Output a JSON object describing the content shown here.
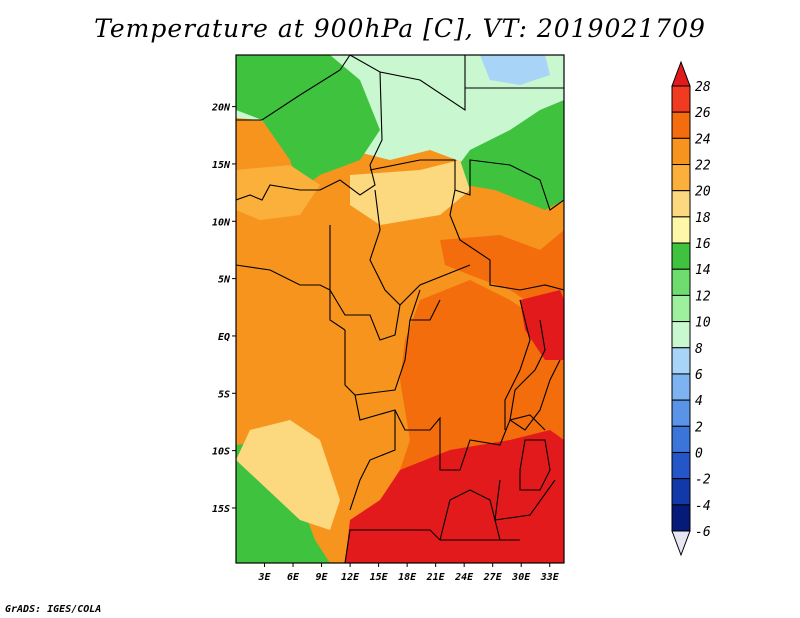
{
  "title": "Temperature at 900hPa [C], VT: 2019021709",
  "footer": "GrADS: IGES/COLA",
  "map": {
    "lat_labels": [
      "20N",
      "15N",
      "10N",
      "5N",
      "EQ",
      "5S",
      "10S",
      "15S"
    ],
    "lat_values": [
      20,
      15,
      10,
      5,
      0,
      -5,
      -10,
      -15
    ],
    "lon_labels": [
      "3E",
      "6E",
      "9E",
      "12E",
      "15E",
      "18E",
      "21E",
      "24E",
      "27E",
      "30E",
      "33E"
    ],
    "lon_values": [
      3,
      6,
      9,
      12,
      15,
      18,
      21,
      24,
      27,
      30,
      33
    ],
    "lon_range": [
      0,
      34.5
    ],
    "lat_range": [
      -19.8,
      24.5
    ]
  },
  "colorbar": {
    "labels": [
      "28",
      "26",
      "24",
      "22",
      "20",
      "18",
      "16",
      "14",
      "12",
      "10",
      "8",
      "6",
      "4",
      "2",
      "0",
      "-2",
      "-4",
      "-6"
    ],
    "levels": [
      28,
      26,
      24,
      22,
      20,
      18,
      16,
      14,
      12,
      10,
      8,
      6,
      4,
      2,
      0,
      -2,
      -4,
      -6
    ],
    "colors": [
      "#e31a1c",
      "#f03b20",
      "#f46d0c",
      "#f7941d",
      "#fbb03b",
      "#fcd97f",
      "#fff7a8",
      "#3fc33f",
      "#6fdc6f",
      "#9eef9e",
      "#c8f7d0",
      "#a8d4f7",
      "#7cb3f0",
      "#5a94e6",
      "#3b75d9",
      "#2456c7",
      "#1239a8",
      "#061a7a",
      "#000064"
    ],
    "min_arrow_color": "#e6e6f5"
  },
  "regions": [
    {
      "name": "sahara-north",
      "value": 10,
      "color": "#c8f7d0"
    },
    {
      "name": "sahel-band",
      "value": 14,
      "color": "#3fc33f"
    },
    {
      "name": "central-africa",
      "value": 24,
      "color": "#f7941d"
    },
    {
      "name": "congo-basin-east",
      "value": 26,
      "color": "#f46d0c"
    },
    {
      "name": "southern-africa",
      "value": 28,
      "color": "#e31a1c"
    },
    {
      "name": "atlantic-southwest",
      "value": 14,
      "color": "#3fc33f"
    }
  ]
}
